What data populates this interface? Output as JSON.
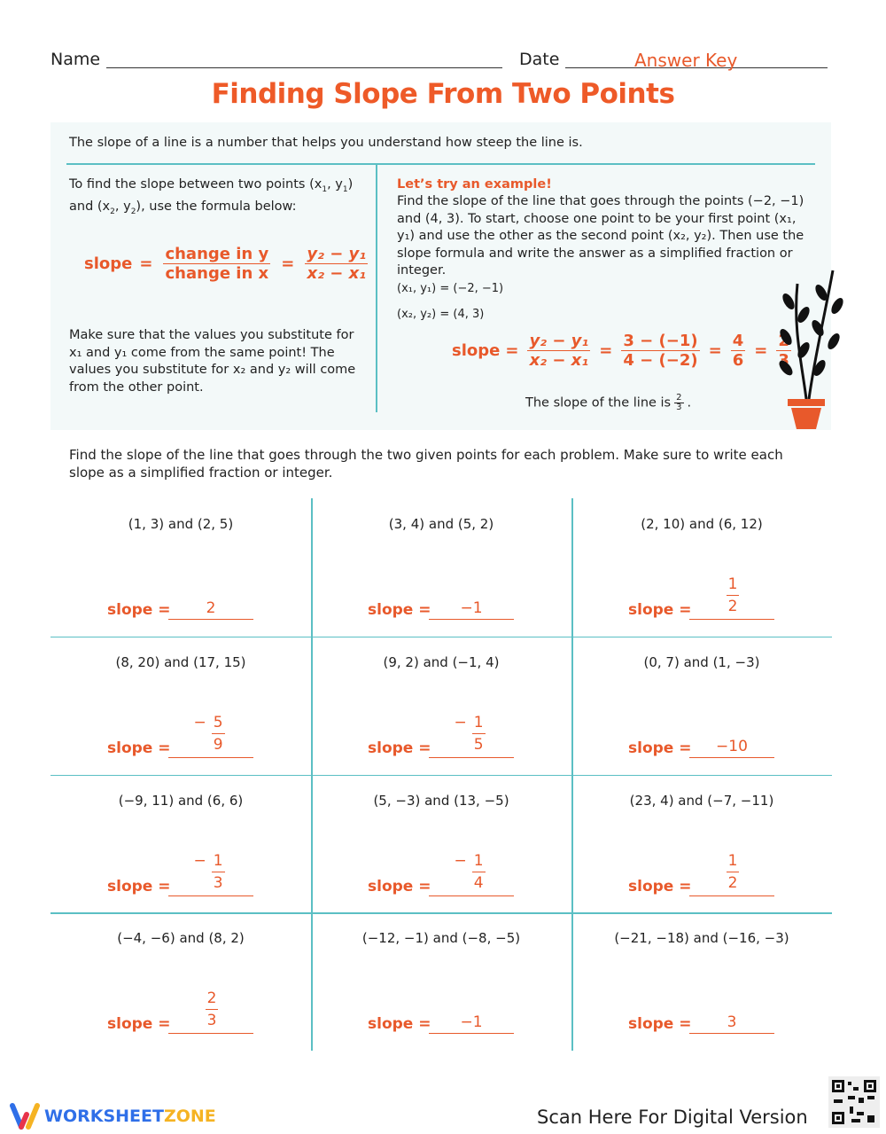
{
  "header": {
    "name_label": "Name",
    "date_label": "Date",
    "date_value": "Answer Key"
  },
  "title": "Finding Slope From Two Points",
  "intro": "The slope of a line is a number that helps you understand how steep the line is.",
  "left": {
    "p1a": "To find the slope between two points (x",
    "p1b": ", y",
    "p1c": ")",
    "p1d": "and (x",
    "p1e": ", y",
    "p1f": "), use the formula below:",
    "formula": {
      "slope": "slope",
      "eq": "=",
      "num": "change in y",
      "den": "change in x",
      "num2": "y₂ − y₁",
      "den2": "x₂ − x₁"
    },
    "p2": "Make sure that the values you substitute for x₁ and y₁ come from the same point! The values you substitute for x₂ and y₂ will come from the other point."
  },
  "right": {
    "heading": "Let’s try an example!",
    "p": "Find the slope of the line that goes through the points (−2, −1) and (4, 3). To start, choose one point to be your first point (x₁, y₁) and use the other as the second point (x₂, y₂). Then use the slope formula and write the answer as a simplified fraction or integer.",
    "pt1": "(x₁, y₁) = (−2, −1)",
    "pt2": "(x₂, y₂) = (4, 3)",
    "calc": {
      "slope": "slope",
      "eq": "=",
      "f1n": "y₂ − y₁",
      "f1d": "x₂ − x₁",
      "f2n": "3 − (−1)",
      "f2d": "4 − (−2)",
      "f3n": "4",
      "f3d": "6",
      "f4n": "2",
      "f4d": "3"
    },
    "conclusion": "The slope of the line is",
    "conc_n": "2",
    "conc_d": "3",
    "period": "."
  },
  "instructions": "Find the slope of the line that goes through the two given points for each problem. Make sure to write each slope as a simplified fraction or integer.",
  "slope_label": "slope =",
  "problems": [
    {
      "points": "(1, 3) and (2, 5)",
      "answer": "2"
    },
    {
      "points": "(3, 4) and (5, 2)",
      "answer": "−1"
    },
    {
      "points": "(2, 10) and (6, 12)",
      "sign": "",
      "num": "1",
      "den": "2"
    },
    {
      "points": "(8, 20) and (17, 15)",
      "sign": "−",
      "num": "5",
      "den": "9"
    },
    {
      "points": "(9, 2) and (−1, 4)",
      "sign": "−",
      "num": "1",
      "den": "5"
    },
    {
      "points": "(0, 7) and (1, −3)",
      "answer": "−10"
    },
    {
      "points": "(−9, 11) and (6, 6)",
      "sign": "−",
      "num": "1",
      "den": "3"
    },
    {
      "points": "(5, −3) and (13, −5)",
      "sign": "−",
      "num": "1",
      "den": "4"
    },
    {
      "points": "(23, 4) and (−7, −11)",
      "sign": "",
      "num": "1",
      "den": "2"
    },
    {
      "points": "(−4, −6) and (8, 2)",
      "sign": "",
      "num": "2",
      "den": "3"
    },
    {
      "points": "(−12, −1) and (−8, −5)",
      "answer": "−1"
    },
    {
      "points": "(−21, −18) and (−16, −3)",
      "answer": "3"
    }
  ],
  "footer": {
    "logo_a": "WORKSHEET",
    "logo_b": "ZONE",
    "scan": "Scan Here For Digital Version"
  },
  "colors": {
    "accent": "#e8592b",
    "teal": "#5bbfc4",
    "box": "#f3f9f9"
  }
}
